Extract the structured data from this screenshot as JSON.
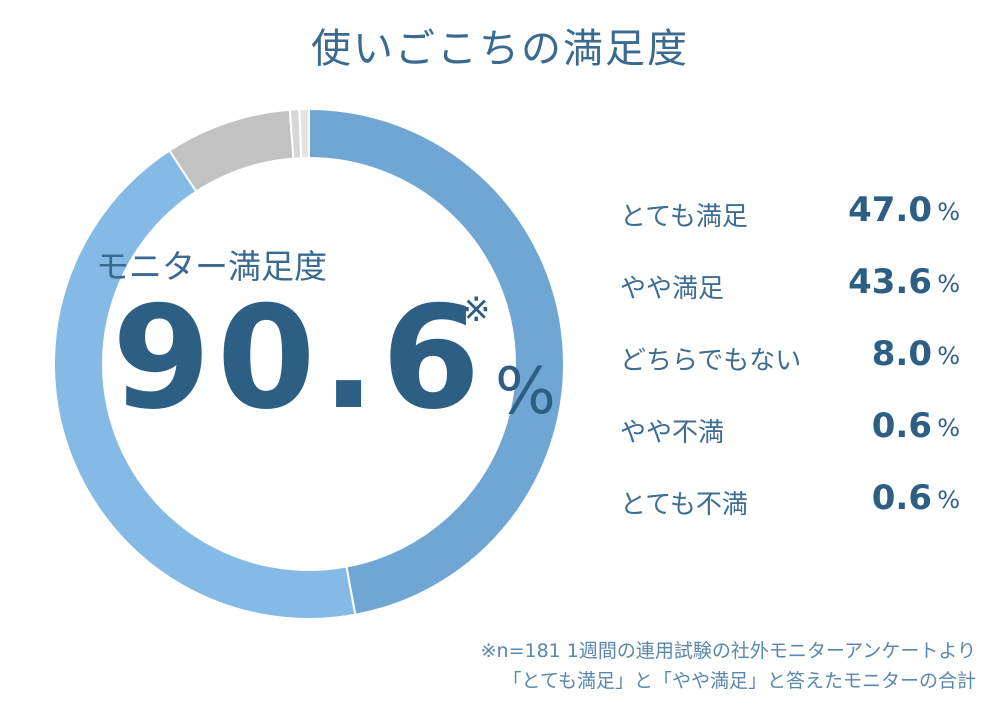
{
  "title": "使いごこちの満足度",
  "center": {
    "label": "モニター満足度",
    "value": "90.6",
    "mark": "※",
    "unit": "%"
  },
  "chart_data": {
    "type": "pie",
    "variant": "donut",
    "categories": [
      "とても満足",
      "やや満足",
      "どちらでもない",
      "やや不満",
      "とても不満"
    ],
    "values": [
      47.0,
      43.6,
      8.0,
      0.6,
      0.6
    ],
    "value_labels": [
      "47.0",
      "43.6",
      "8.0",
      "0.6",
      "0.6"
    ],
    "unit": "%",
    "colors": [
      "#6fa6d3",
      "#85b9e6",
      "#c2c2c2",
      "#d7d7d7",
      "#e4e4e4"
    ],
    "legend_position": "right"
  },
  "footnote": {
    "line1": "※n=181 1週間の連用試験の社外モニターアンケートより",
    "line2": "「とても満足」と「やや満足」と答えたモニターの合計"
  }
}
